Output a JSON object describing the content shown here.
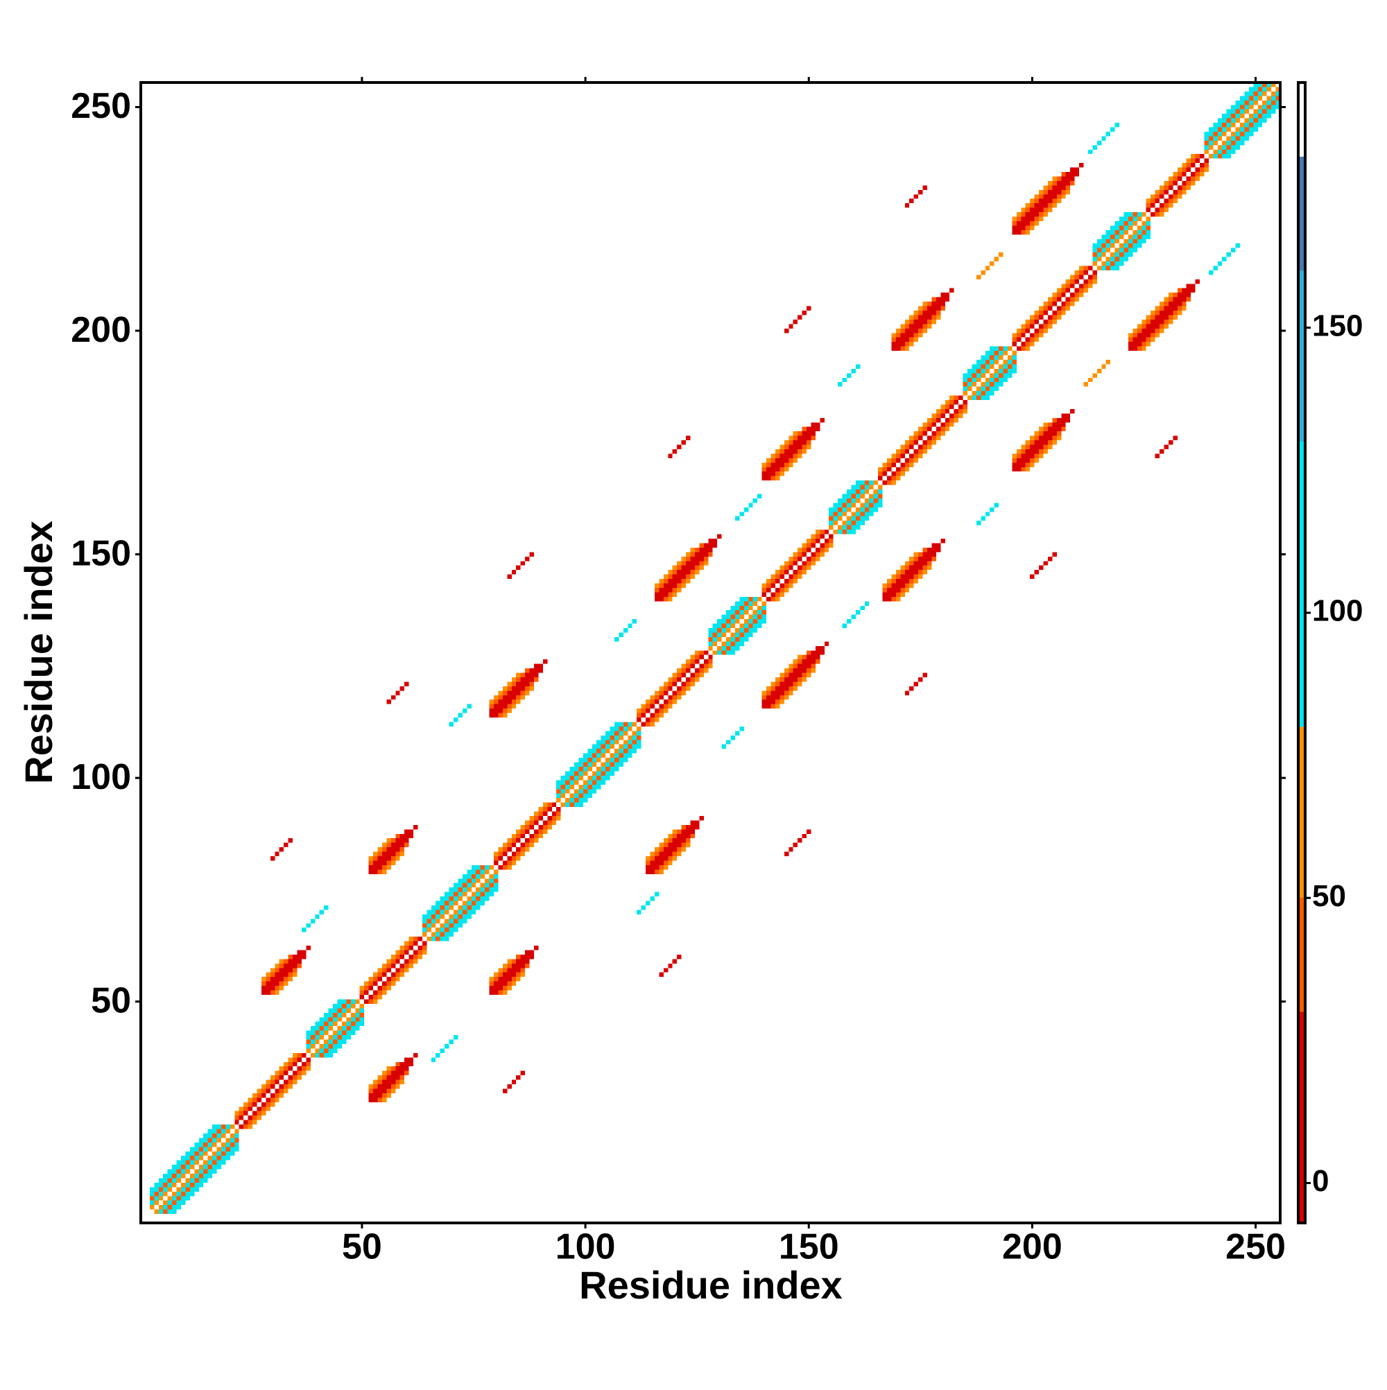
{
  "chart_data": {
    "type": "heatmap",
    "xlabel": "Residue index",
    "ylabel": "Residue index",
    "xlim": [
      0.5,
      255.5
    ],
    "ylim": [
      0.5,
      255.5
    ],
    "xticks": [
      50,
      100,
      150,
      200,
      250
    ],
    "yticks": [
      50,
      100,
      150,
      200,
      250
    ],
    "symmetric": true,
    "colorbar": {
      "lim": [
        -7,
        193
      ],
      "ticks": [
        0,
        50,
        100,
        150
      ],
      "stops": [
        [
          -7,
          "#d80000"
        ],
        [
          30,
          "#ff5a00"
        ],
        [
          50,
          "#ff9000"
        ],
        [
          80,
          "#00e5ee"
        ],
        [
          130,
          "#2fb0dc"
        ],
        [
          160,
          "#4a78b0"
        ],
        [
          180,
          "#ffffff"
        ]
      ]
    },
    "runs": [
      [
        4,
        3,
        19,
        65
      ],
      [
        5,
        3,
        18,
        95
      ],
      [
        6,
        3,
        17,
        40
      ],
      [
        7,
        3,
        16,
        95
      ],
      [
        8,
        3,
        15,
        95
      ],
      [
        23,
        22,
        16,
        10
      ],
      [
        24,
        22,
        15,
        40
      ],
      [
        25,
        22,
        14,
        65
      ],
      [
        39,
        38,
        12,
        65
      ],
      [
        40,
        38,
        11,
        95
      ],
      [
        41,
        38,
        10,
        40
      ],
      [
        42,
        38,
        9,
        95
      ],
      [
        43,
        38,
        8,
        95
      ],
      [
        51,
        50,
        14,
        10
      ],
      [
        52,
        50,
        13,
        40
      ],
      [
        53,
        50,
        12,
        65
      ],
      [
        65,
        64,
        16,
        65
      ],
      [
        66,
        64,
        15,
        95
      ],
      [
        67,
        64,
        14,
        40
      ],
      [
        68,
        64,
        13,
        95
      ],
      [
        69,
        64,
        12,
        95
      ],
      [
        81,
        80,
        14,
        10
      ],
      [
        82,
        80,
        13,
        40
      ],
      [
        83,
        80,
        12,
        65
      ],
      [
        95,
        94,
        18,
        65
      ],
      [
        96,
        94,
        17,
        95
      ],
      [
        97,
        94,
        16,
        40
      ],
      [
        98,
        94,
        15,
        95
      ],
      [
        99,
        94,
        14,
        95
      ],
      [
        113,
        112,
        16,
        10
      ],
      [
        114,
        112,
        15,
        40
      ],
      [
        115,
        112,
        14,
        65
      ],
      [
        129,
        128,
        12,
        65
      ],
      [
        130,
        128,
        11,
        95
      ],
      [
        131,
        128,
        10,
        40
      ],
      [
        132,
        128,
        9,
        95
      ],
      [
        133,
        128,
        8,
        95
      ],
      [
        141,
        140,
        15,
        10
      ],
      [
        142,
        140,
        14,
        40
      ],
      [
        143,
        140,
        13,
        65
      ],
      [
        156,
        155,
        11,
        65
      ],
      [
        157,
        155,
        10,
        95
      ],
      [
        158,
        155,
        9,
        40
      ],
      [
        159,
        155,
        8,
        95
      ],
      [
        160,
        155,
        7,
        95
      ],
      [
        167,
        166,
        19,
        10
      ],
      [
        168,
        166,
        18,
        40
      ],
      [
        169,
        166,
        17,
        65
      ],
      [
        186,
        185,
        11,
        65
      ],
      [
        187,
        185,
        10,
        95
      ],
      [
        188,
        185,
        9,
        40
      ],
      [
        189,
        185,
        8,
        95
      ],
      [
        190,
        185,
        7,
        95
      ],
      [
        197,
        196,
        18,
        10
      ],
      [
        198,
        196,
        17,
        40
      ],
      [
        199,
        196,
        16,
        65
      ],
      [
        215,
        214,
        12,
        65
      ],
      [
        216,
        214,
        11,
        95
      ],
      [
        217,
        214,
        10,
        40
      ],
      [
        218,
        214,
        9,
        95
      ],
      [
        219,
        214,
        8,
        95
      ],
      [
        227,
        226,
        13,
        10
      ],
      [
        228,
        226,
        12,
        40
      ],
      [
        229,
        226,
        11,
        65
      ],
      [
        240,
        239,
        16,
        65
      ],
      [
        241,
        239,
        15,
        95
      ],
      [
        242,
        239,
        14,
        40
      ],
      [
        243,
        239,
        13,
        95
      ],
      [
        244,
        239,
        12,
        95
      ],
      [
        55,
        28,
        5,
        65
      ],
      [
        52,
        31,
        5,
        65
      ],
      [
        54,
        28,
        7,
        40
      ],
      [
        52,
        30,
        7,
        40
      ],
      [
        53,
        28,
        9,
        10
      ],
      [
        52,
        29,
        9,
        10
      ],
      [
        52,
        28,
        11,
        10
      ],
      [
        82,
        52,
        5,
        65
      ],
      [
        79,
        55,
        5,
        65
      ],
      [
        81,
        52,
        7,
        40
      ],
      [
        79,
        54,
        7,
        40
      ],
      [
        80,
        52,
        9,
        10
      ],
      [
        79,
        53,
        9,
        10
      ],
      [
        79,
        52,
        11,
        10
      ],
      [
        117,
        79,
        7,
        65
      ],
      [
        114,
        82,
        7,
        65
      ],
      [
        116,
        79,
        9,
        40
      ],
      [
        114,
        81,
        9,
        40
      ],
      [
        115,
        79,
        11,
        10
      ],
      [
        114,
        80,
        11,
        10
      ],
      [
        114,
        79,
        13,
        10
      ],
      [
        143,
        116,
        9,
        65
      ],
      [
        140,
        119,
        9,
        65
      ],
      [
        142,
        116,
        11,
        40
      ],
      [
        140,
        118,
        11,
        40
      ],
      [
        141,
        116,
        13,
        10
      ],
      [
        140,
        117,
        13,
        10
      ],
      [
        140,
        116,
        15,
        10
      ],
      [
        170,
        140,
        8,
        65
      ],
      [
        167,
        143,
        8,
        65
      ],
      [
        169,
        140,
        10,
        40
      ],
      [
        167,
        142,
        10,
        40
      ],
      [
        168,
        140,
        12,
        10
      ],
      [
        167,
        141,
        12,
        10
      ],
      [
        167,
        140,
        14,
        10
      ],
      [
        199,
        169,
        8,
        65
      ],
      [
        196,
        172,
        8,
        65
      ],
      [
        198,
        169,
        10,
        40
      ],
      [
        196,
        171,
        10,
        40
      ],
      [
        197,
        169,
        12,
        10
      ],
      [
        196,
        170,
        12,
        10
      ],
      [
        196,
        169,
        14,
        10
      ],
      [
        225,
        196,
        10,
        65
      ],
      [
        222,
        199,
        10,
        65
      ],
      [
        224,
        196,
        12,
        40
      ],
      [
        222,
        198,
        12,
        40
      ],
      [
        223,
        196,
        14,
        10
      ],
      [
        222,
        197,
        14,
        10
      ],
      [
        222,
        196,
        16,
        10
      ],
      [
        117,
        56,
        5,
        10
      ],
      [
        82,
        30,
        5,
        10
      ],
      [
        145,
        83,
        6,
        10
      ],
      [
        172,
        119,
        5,
        10
      ],
      [
        200,
        145,
        6,
        10
      ],
      [
        228,
        172,
        5,
        10
      ],
      [
        66,
        37,
        6,
        95
      ],
      [
        112,
        70,
        5,
        95
      ],
      [
        131,
        107,
        5,
        95
      ],
      [
        158,
        134,
        6,
        95
      ],
      [
        188,
        157,
        5,
        95
      ],
      [
        212,
        188,
        6,
        65
      ],
      [
        240,
        213,
        7,
        95
      ]
    ]
  }
}
